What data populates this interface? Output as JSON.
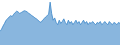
{
  "chart_data": {
    "type": "area",
    "values": [
      30,
      35,
      42,
      48,
      55,
      58,
      62,
      65,
      63,
      68,
      72,
      75,
      73,
      70,
      72,
      74,
      76,
      75,
      73,
      70,
      68,
      65,
      63,
      60,
      58,
      55,
      52,
      50,
      55,
      58,
      62,
      65,
      68,
      95,
      70,
      55,
      60,
      50,
      45,
      55,
      48,
      52,
      58,
      50,
      45,
      55,
      48,
      52,
      45,
      50,
      55,
      48,
      52,
      45,
      50,
      55,
      48,
      52,
      45,
      50,
      48,
      52,
      48,
      45,
      50,
      48,
      52,
      45,
      48,
      52,
      48,
      45,
      52,
      48,
      45,
      50,
      48,
      45,
      50,
      48
    ],
    "color": "#3a85c8",
    "ylim": [
      0,
      99.75
    ],
    "grid": false,
    "tick_labels": false
  }
}
